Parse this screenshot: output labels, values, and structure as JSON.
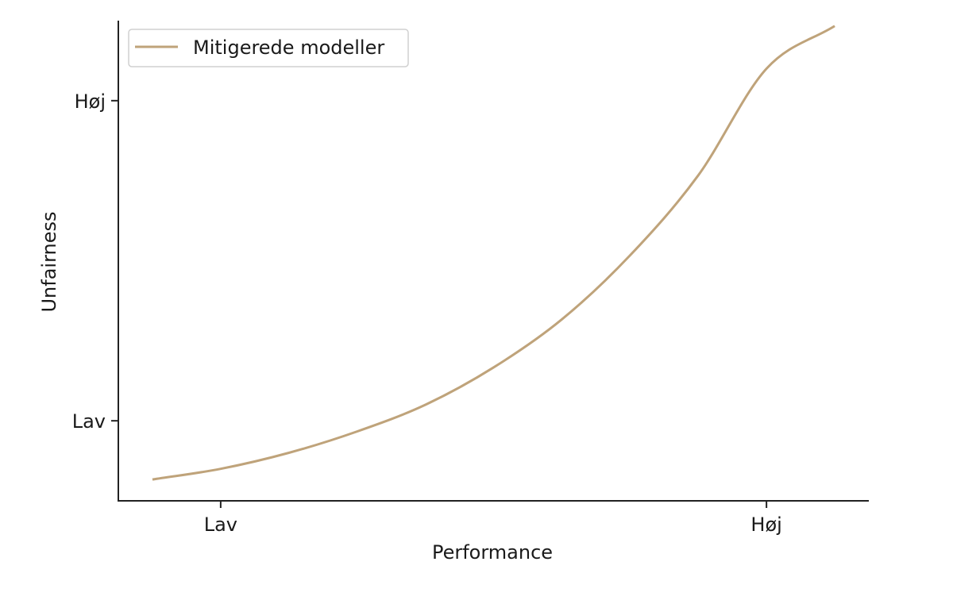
{
  "chart_data": {
    "type": "line",
    "title": "",
    "xlabel": "Performance",
    "ylabel": "Unfairness",
    "x_ticks": [
      {
        "value": 0.15,
        "label": "Lav"
      },
      {
        "value": 0.95,
        "label": "Høj"
      }
    ],
    "y_ticks": [
      {
        "value": 0.2,
        "label": "Lav"
      },
      {
        "value": 0.8,
        "label": "Høj"
      }
    ],
    "xlim": [
      0,
      1.1
    ],
    "ylim": [
      0.05,
      0.95
    ],
    "grid": false,
    "legend_position": "top-left",
    "series": [
      {
        "name": "Mitigerede modeller",
        "color": "#bfa37a",
        "x": [
          0.05,
          0.15,
          0.25,
          0.35,
          0.45,
          0.55,
          0.65,
          0.75,
          0.85,
          0.95,
          1.05
        ],
        "y": [
          0.09,
          0.11,
          0.14,
          0.18,
          0.23,
          0.3,
          0.39,
          0.51,
          0.66,
          0.86,
          0.94
        ]
      }
    ]
  }
}
